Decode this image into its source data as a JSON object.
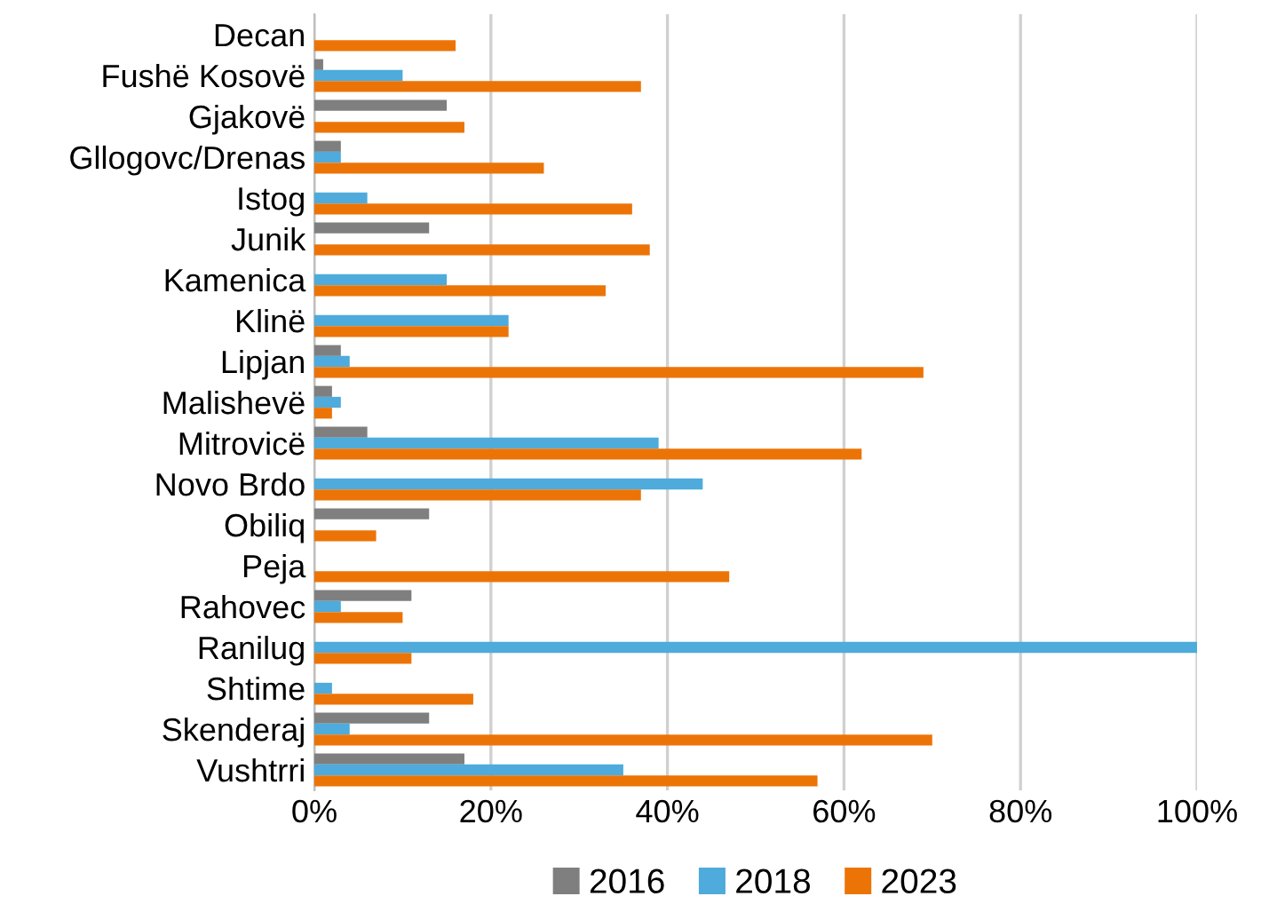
{
  "chart_data": {
    "type": "bar",
    "orientation": "horizontal",
    "categories": [
      "Decan",
      "Fushë Kosovë",
      "Gjakovë",
      "Gllogovc/Drenas",
      "Istog",
      "Junik",
      "Kamenica",
      "Klinë",
      "Lipjan",
      "Malishevë",
      "Mitrovicë",
      "Novo Brdo",
      "Obiliq",
      "Peja",
      "Rahovec",
      "Ranilug",
      "Shtime",
      "Skenderaj",
      "Vushtrri"
    ],
    "series": [
      {
        "name": "2016",
        "color": "#7f7f7f",
        "values": [
          0,
          1,
          15,
          3,
          0,
          13,
          0,
          0,
          3,
          2,
          6,
          0,
          13,
          0,
          11,
          0,
          0,
          13,
          17
        ]
      },
      {
        "name": "2018",
        "color": "#4eabdb",
        "values": [
          0,
          10,
          0,
          3,
          6,
          0,
          15,
          22,
          4,
          3,
          39,
          44,
          0,
          0,
          3,
          100,
          2,
          4,
          35
        ]
      },
      {
        "name": "2023",
        "color": "#ec7406",
        "values": [
          16,
          37,
          17,
          26,
          36,
          38,
          33,
          22,
          69,
          2,
          62,
          37,
          7,
          47,
          10,
          11,
          18,
          70,
          57
        ]
      }
    ],
    "xlim": [
      0,
      100
    ],
    "xticks": [
      {
        "value": 0,
        "label": "0%"
      },
      {
        "value": 20,
        "label": "20%"
      },
      {
        "value": 40,
        "label": "40%"
      },
      {
        "value": 60,
        "label": "60%"
      },
      {
        "value": 80,
        "label": "80%"
      },
      {
        "value": 100,
        "label": "100%"
      }
    ],
    "grid": "x",
    "legend": "bottom"
  }
}
